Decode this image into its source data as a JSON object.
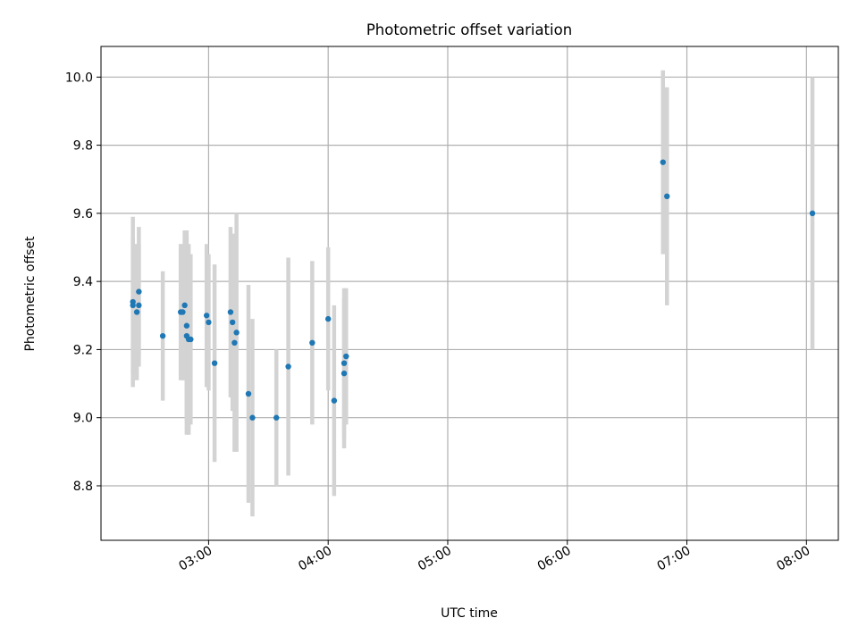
{
  "chart_data": {
    "type": "scatter",
    "title": "Photometric offset variation",
    "xlabel": "UTC time",
    "ylabel": "Photometric offset",
    "x_axis_type": "time",
    "xlim": [
      "02:06",
      "08:16"
    ],
    "ylim": [
      8.64,
      10.09
    ],
    "x_ticks": [
      "03:00",
      "04:00",
      "05:00",
      "06:00",
      "07:00",
      "08:00"
    ],
    "y_ticks": [
      "8.8",
      "9.0",
      "9.2",
      "9.4",
      "9.6",
      "9.8",
      "10.0"
    ],
    "grid": true,
    "legend": "none",
    "colors": {
      "point": "#1f77b4",
      "errorbar": "#d3d3d3",
      "grid": "#b0b0b0"
    },
    "points": [
      {
        "t": "02:22",
        "y": 9.34,
        "err": 0.25
      },
      {
        "t": "02:22",
        "y": 9.33,
        "err": 0.2
      },
      {
        "t": "02:24",
        "y": 9.31,
        "err": 0.2
      },
      {
        "t": "02:25",
        "y": 9.33,
        "err": 0.18
      },
      {
        "t": "02:25",
        "y": 9.37,
        "err": 0.19
      },
      {
        "t": "02:37",
        "y": 9.24,
        "err": 0.19
      },
      {
        "t": "02:46",
        "y": 9.31,
        "err": 0.2
      },
      {
        "t": "02:47",
        "y": 9.31,
        "err": 0.2
      },
      {
        "t": "02:48",
        "y": 9.33,
        "err": 0.22
      },
      {
        "t": "02:49",
        "y": 9.27,
        "err": 0.28
      },
      {
        "t": "02:49",
        "y": 9.24,
        "err": 0.29
      },
      {
        "t": "02:50",
        "y": 9.23,
        "err": 0.28
      },
      {
        "t": "02:51",
        "y": 9.23,
        "err": 0.25
      },
      {
        "t": "02:59",
        "y": 9.3,
        "err": 0.21
      },
      {
        "t": "03:00",
        "y": 9.28,
        "err": 0.2
      },
      {
        "t": "03:03",
        "y": 9.16,
        "err": 0.29
      },
      {
        "t": "03:11",
        "y": 9.31,
        "err": 0.25
      },
      {
        "t": "03:12",
        "y": 9.28,
        "err": 0.26
      },
      {
        "t": "03:13",
        "y": 9.22,
        "err": 0.32
      },
      {
        "t": "03:14",
        "y": 9.25,
        "err": 0.35
      },
      {
        "t": "03:20",
        "y": 9.07,
        "err": 0.32
      },
      {
        "t": "03:22",
        "y": 9.0,
        "err": 0.29
      },
      {
        "t": "03:34",
        "y": 9.0,
        "err": 0.2
      },
      {
        "t": "03:40",
        "y": 9.15,
        "err": 0.32
      },
      {
        "t": "03:52",
        "y": 9.22,
        "err": 0.24
      },
      {
        "t": "04:00",
        "y": 9.29,
        "err": 0.21
      },
      {
        "t": "04:03",
        "y": 9.05,
        "err": 0.28
      },
      {
        "t": "04:08",
        "y": 9.16,
        "err": 0.22
      },
      {
        "t": "04:08",
        "y": 9.13,
        "err": 0.22
      },
      {
        "t": "04:09",
        "y": 9.18,
        "err": 0.2
      },
      {
        "t": "06:48",
        "y": 9.75,
        "err": 0.27
      },
      {
        "t": "06:50",
        "y": 9.65,
        "err": 0.32
      },
      {
        "t": "08:03",
        "y": 9.6,
        "err": 0.4
      }
    ]
  }
}
